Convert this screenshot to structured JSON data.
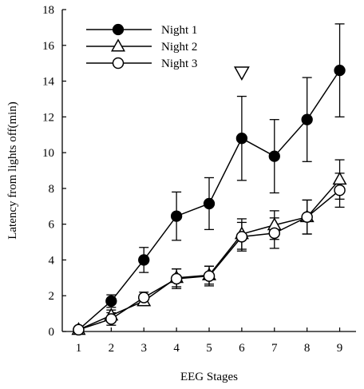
{
  "chart_data": {
    "type": "line",
    "title": "",
    "xlabel": "EEG Stages",
    "ylabel": "Latency from lights off(min)",
    "categories": [
      "1",
      "2",
      "3",
      "4",
      "5",
      "6",
      "7",
      "8",
      "9"
    ],
    "x": [
      1,
      2,
      3,
      4,
      5,
      6,
      7,
      8,
      9
    ],
    "xlim": [
      0.5,
      9.5
    ],
    "ylim": [
      0,
      18
    ],
    "yticks": [
      "0",
      "2",
      "4",
      "6",
      "8",
      "10",
      "12",
      "14",
      "16",
      "18"
    ],
    "grid": false,
    "legend_position": "top-left",
    "series": [
      {
        "name": "Night 1",
        "marker": "filled-circle",
        "values": [
          0.1,
          1.7,
          4.0,
          6.45,
          7.15,
          10.8,
          9.8,
          11.85,
          14.6
        ],
        "error": [
          0.0,
          0.35,
          0.7,
          1.35,
          1.45,
          2.35,
          2.05,
          2.35,
          2.6
        ]
      },
      {
        "name": "Night 2",
        "marker": "open-triangle",
        "values": [
          0.1,
          0.9,
          1.7,
          3.0,
          3.15,
          5.45,
          5.95,
          6.4,
          8.5
        ],
        "error": [
          0.0,
          0.3,
          0.25,
          0.5,
          0.5,
          0.85,
          0.8,
          0.95,
          1.1
        ]
      },
      {
        "name": "Night 3",
        "marker": "open-circle",
        "values": [
          0.1,
          0.7,
          1.9,
          2.95,
          3.1,
          5.3,
          5.5,
          6.4,
          7.9
        ],
        "error": [
          0.0,
          0.35,
          0.3,
          0.55,
          0.55,
          0.8,
          0.85,
          0.95,
          0.95
        ]
      }
    ],
    "annotations": [
      {
        "type": "open-inverted-triangle",
        "x": 6,
        "y": 14.5,
        "text": ""
      }
    ]
  },
  "colors": {
    "line": "#000000",
    "background": "#ffffff"
  }
}
